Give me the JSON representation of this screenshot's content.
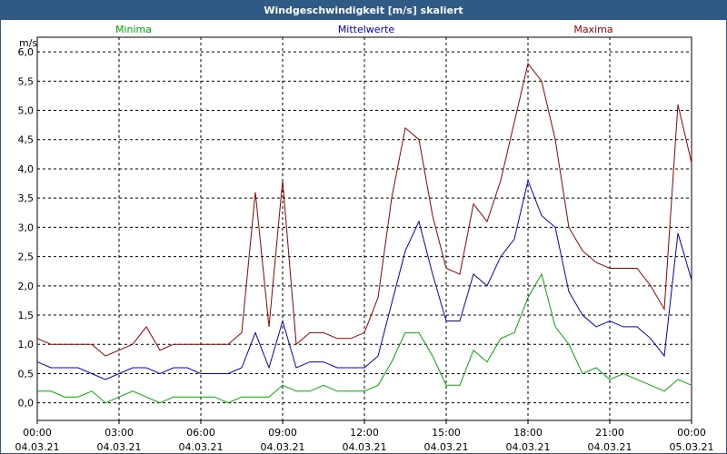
{
  "window": {
    "title": "Windgeschwindigkeit [m/s] skaliert"
  },
  "chart_data": {
    "type": "line",
    "title": "Windgeschwindigkeit [m/s] skaliert",
    "ylabel": "m/s",
    "ylim": [
      -0.3,
      6.25
    ],
    "xlim": [
      0,
      24
    ],
    "yticks": [
      "0,0",
      "0,5",
      "1,0",
      "1,5",
      "2,0",
      "2,5",
      "3,0",
      "3,5",
      "4,0",
      "4,5",
      "5,0",
      "5,5",
      "6,0"
    ],
    "ytick_values": [
      0,
      0.5,
      1,
      1.5,
      2,
      2.5,
      3,
      3.5,
      4,
      4.5,
      5,
      5.5,
      6
    ],
    "xticks": [
      {
        "time": "00:00",
        "date": "04.03.21"
      },
      {
        "time": "03:00",
        "date": "04.03.21"
      },
      {
        "time": "06:00",
        "date": "04.03.21"
      },
      {
        "time": "09:00",
        "date": "04.03.21"
      },
      {
        "time": "12:00",
        "date": "04.03.21"
      },
      {
        "time": "15:00",
        "date": "04.03.21"
      },
      {
        "time": "18:00",
        "date": "04.03.21"
      },
      {
        "time": "21:00",
        "date": "04.03.21"
      },
      {
        "time": "00:00",
        "date": "05.03.21"
      }
    ],
    "xtick_hours": [
      0,
      3,
      6,
      9,
      12,
      15,
      18,
      21,
      24
    ],
    "grid": true,
    "legend": "top",
    "series": [
      {
        "name": "Minima",
        "color": "#00aa00",
        "x": [
          0,
          0.5,
          1,
          1.5,
          2,
          2.5,
          3,
          3.5,
          4,
          4.5,
          5,
          5.5,
          6,
          6.5,
          7,
          7.5,
          8,
          8.5,
          9,
          9.5,
          10,
          10.5,
          11,
          11.5,
          12,
          12.5,
          13,
          13.5,
          14,
          14.5,
          15,
          15.5,
          16,
          16.5,
          17,
          17.5,
          18,
          18.5,
          19,
          19.5,
          20,
          20.5,
          21,
          21.5,
          22,
          22.5,
          23,
          23.5,
          24
        ],
        "y": [
          0.2,
          0.2,
          0.1,
          0.1,
          0.2,
          0,
          0.1,
          0.2,
          0.1,
          0,
          0.1,
          0.1,
          0.1,
          0.1,
          0,
          0.1,
          0.1,
          0.1,
          0.3,
          0.2,
          0.2,
          0.3,
          0.2,
          0.2,
          0.2,
          0.3,
          0.7,
          1.2,
          1.2,
          0.8,
          0.3,
          0.3,
          0.9,
          0.7,
          1.1,
          1.2,
          1.8,
          2.2,
          1.3,
          1,
          0.5,
          0.6,
          0.4,
          0.5,
          0.4,
          0.3,
          0.2,
          0.4,
          0.3
        ]
      },
      {
        "name": "Mittelwerte",
        "color": "#0000cc",
        "x": [
          0,
          0.5,
          1,
          1.5,
          2,
          2.5,
          3,
          3.5,
          4,
          4.5,
          5,
          5.5,
          6,
          6.5,
          7,
          7.5,
          8,
          8.5,
          9,
          9.5,
          10,
          10.5,
          11,
          11.5,
          12,
          12.5,
          13,
          13.5,
          14,
          14.5,
          15,
          15.5,
          16,
          16.5,
          17,
          17.5,
          18,
          18.5,
          19,
          19.5,
          20,
          20.5,
          21,
          21.5,
          22,
          22.5,
          23,
          23.5,
          24
        ],
        "y": [
          0.7,
          0.6,
          0.6,
          0.6,
          0.5,
          0.4,
          0.5,
          0.6,
          0.6,
          0.5,
          0.6,
          0.6,
          0.5,
          0.5,
          0.5,
          0.6,
          1.2,
          0.6,
          1.4,
          0.6,
          0.7,
          0.7,
          0.6,
          0.6,
          0.6,
          0.8,
          1.7,
          2.6,
          3.1,
          2.2,
          1.4,
          1.4,
          2.2,
          2,
          2.5,
          2.8,
          3.8,
          3.2,
          3,
          1.9,
          1.5,
          1.3,
          1.4,
          1.3,
          1.3,
          1.1,
          0.8,
          2.9,
          2.1
        ]
      },
      {
        "name": "Maxima",
        "color": "#990000",
        "x": [
          0,
          0.5,
          1,
          1.5,
          2,
          2.5,
          3,
          3.5,
          4,
          4.5,
          5,
          5.5,
          6,
          6.5,
          7,
          7.5,
          8,
          8.5,
          9,
          9.5,
          10,
          10.5,
          11,
          11.5,
          12,
          12.5,
          13,
          13.5,
          14,
          14.5,
          15,
          15.5,
          16,
          16.5,
          17,
          17.5,
          18,
          18.5,
          19,
          19.5,
          20,
          20.5,
          21,
          21.5,
          22,
          22.5,
          23,
          23.5,
          24
        ],
        "y": [
          1.1,
          1,
          1,
          1,
          1,
          0.8,
          0.9,
          1,
          1.3,
          0.9,
          1,
          1,
          1,
          1,
          1,
          1.2,
          3.6,
          1.3,
          3.8,
          1,
          1.2,
          1.2,
          1.1,
          1.1,
          1.2,
          1.8,
          3.5,
          4.7,
          4.5,
          3.2,
          2.3,
          2.2,
          3.4,
          3.1,
          3.8,
          4.8,
          5.8,
          5.5,
          4.5,
          3,
          2.6,
          2.4,
          2.3,
          2.3,
          2.3,
          2,
          1.6,
          5.1,
          4.1
        ]
      }
    ]
  }
}
